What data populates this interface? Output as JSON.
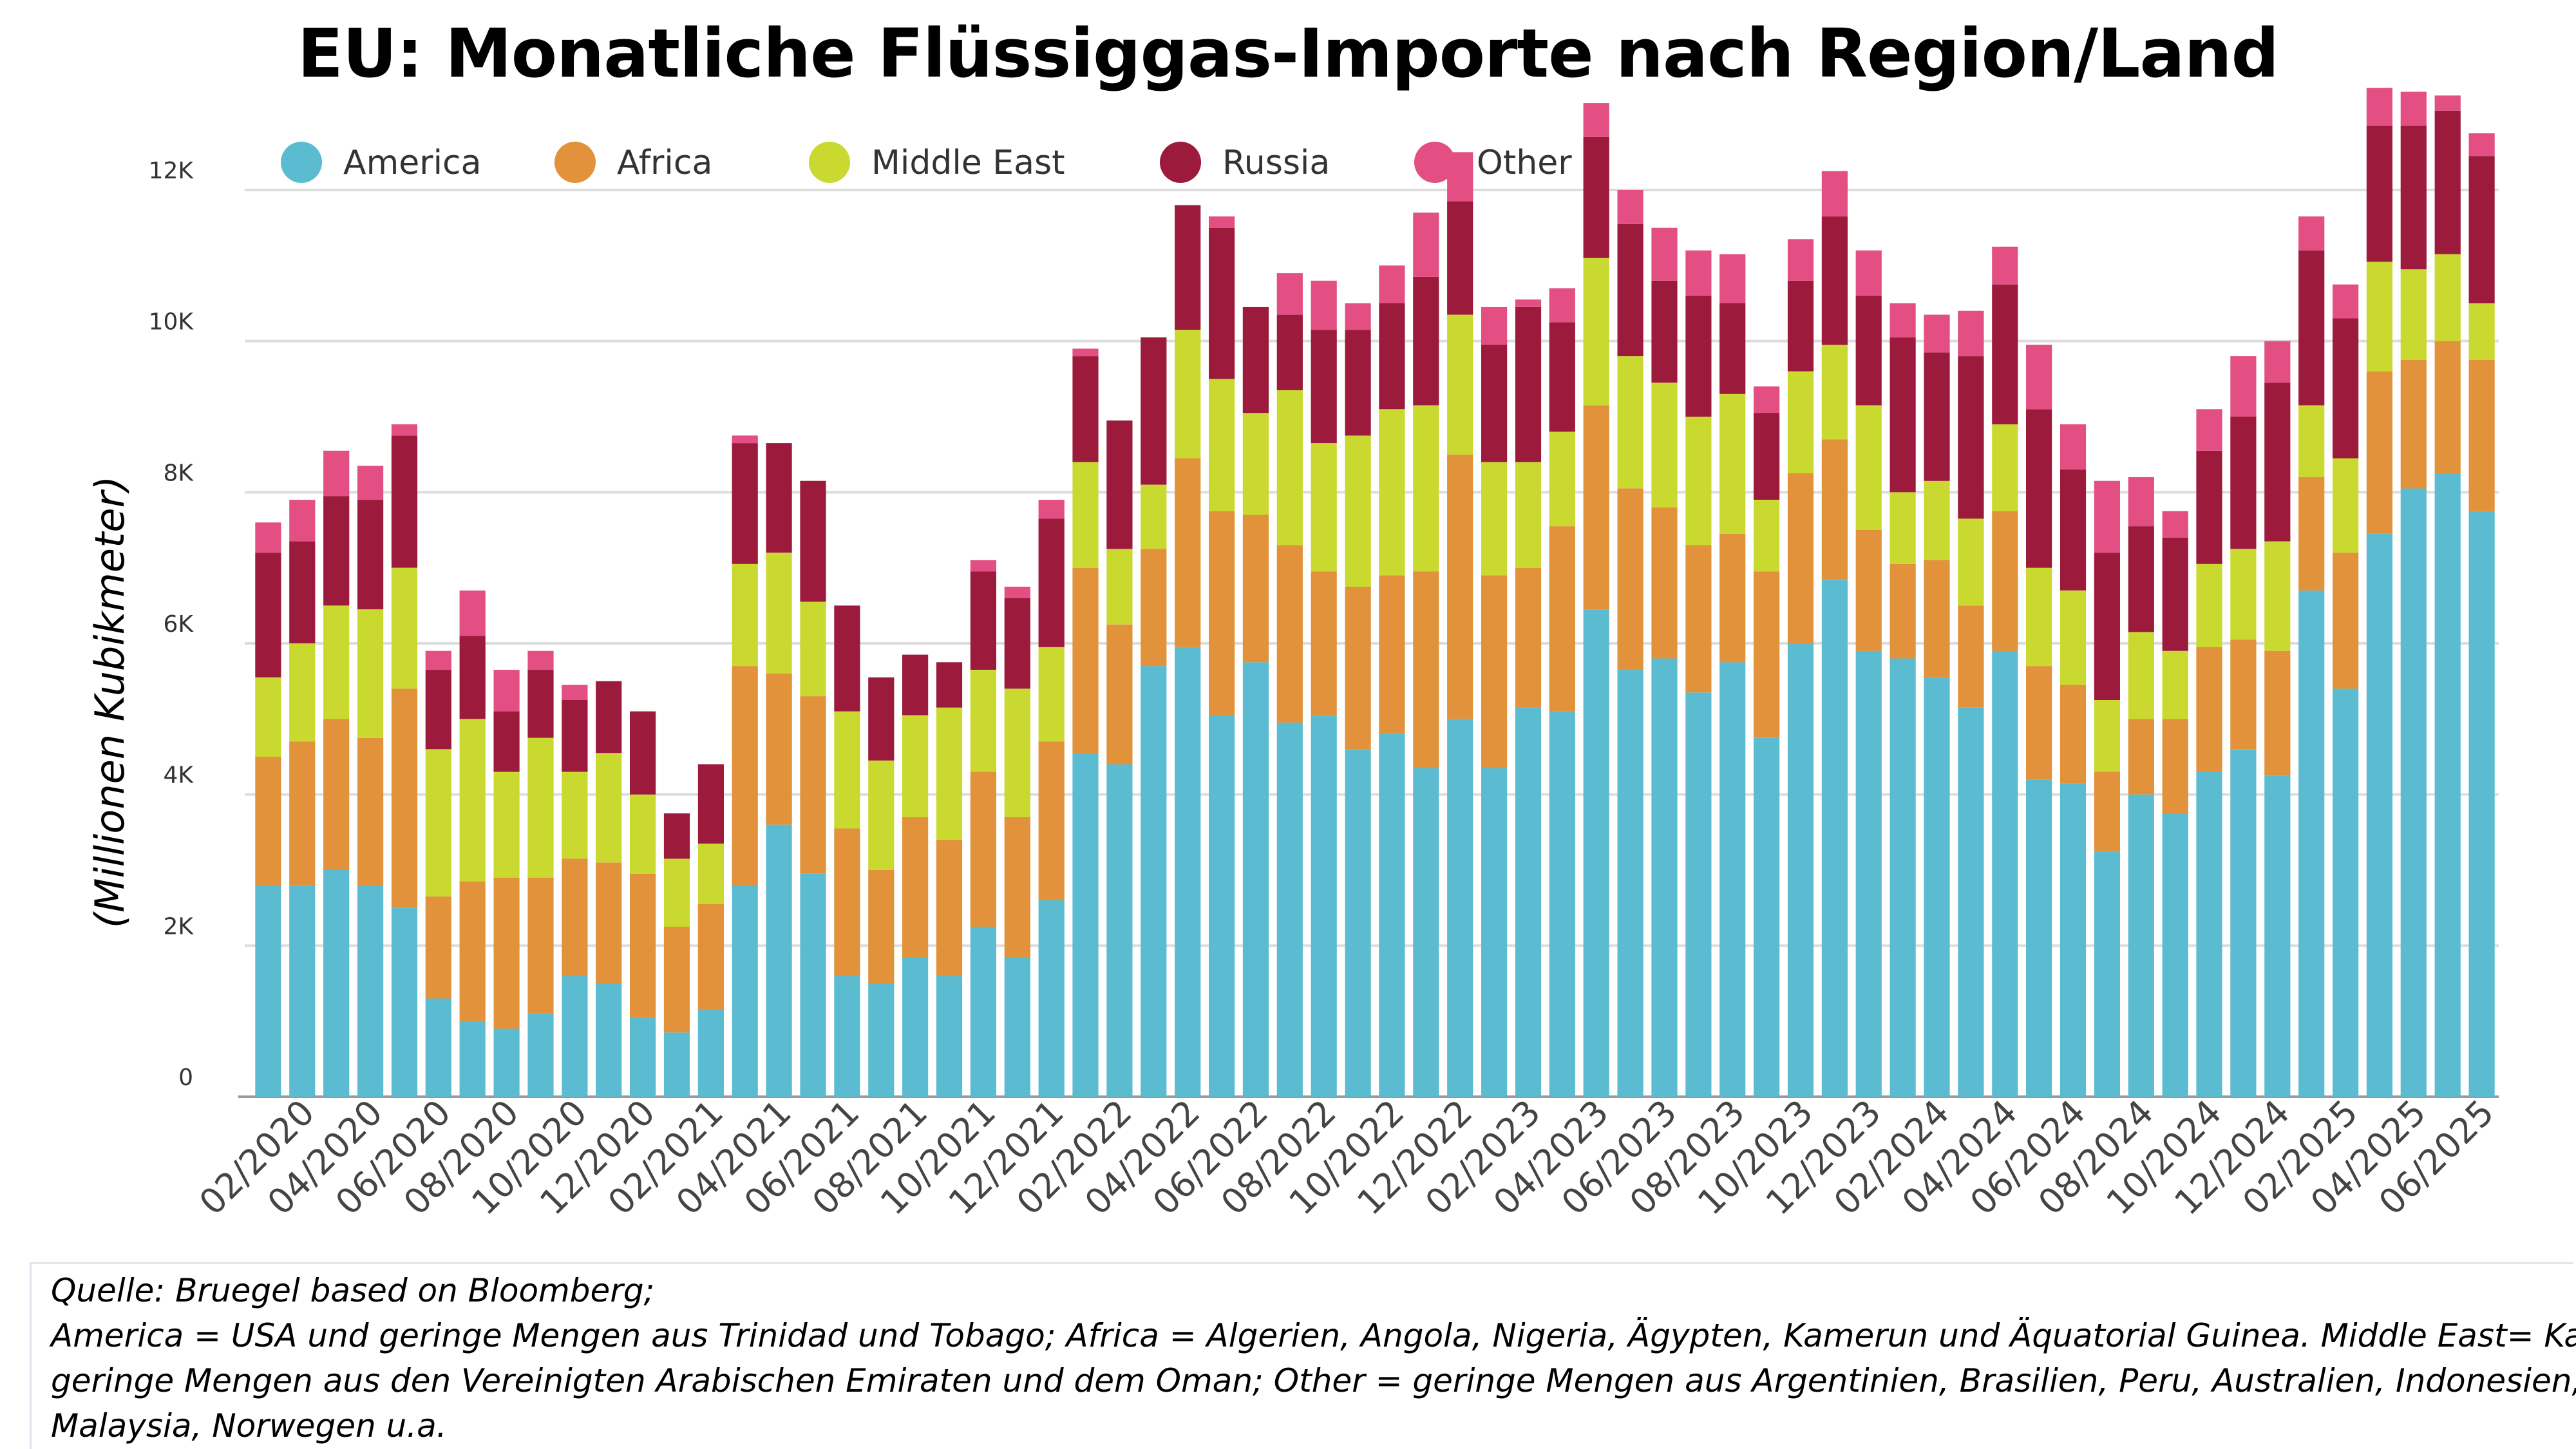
{
  "chart_data": {
    "type": "bar",
    "stacked": true,
    "title": "EU: Monatliche Flüssiggas-Importe nach Region/Land",
    "ylabel": "(Millionen Kubikmeter)",
    "xlabel": "",
    "ylim": [
      0,
      13200
    ],
    "yticks": [
      0,
      2000,
      4000,
      6000,
      8000,
      10000,
      12000
    ],
    "ytick_labels": [
      "0",
      "2K",
      "4K",
      "6K",
      "8K",
      "10K",
      "12K"
    ],
    "grid": true,
    "legend_position": "top-left",
    "categories": [
      "01/2020",
      "02/2020",
      "03/2020",
      "04/2020",
      "05/2020",
      "06/2020",
      "07/2020",
      "08/2020",
      "09/2020",
      "10/2020",
      "11/2020",
      "12/2020",
      "01/2021",
      "02/2021",
      "03/2021",
      "04/2021",
      "05/2021",
      "06/2021",
      "07/2021",
      "08/2021",
      "09/2021",
      "10/2021",
      "11/2021",
      "12/2021",
      "01/2022",
      "02/2022",
      "03/2022",
      "04/2022",
      "05/2022",
      "06/2022",
      "07/2022",
      "08/2022",
      "09/2022",
      "10/2022",
      "11/2022",
      "12/2022",
      "01/2023",
      "02/2023",
      "03/2023",
      "04/2023",
      "05/2023",
      "06/2023",
      "07/2023",
      "08/2023",
      "09/2023",
      "10/2023",
      "11/2023",
      "12/2023",
      "01/2024",
      "02/2024",
      "03/2024",
      "04/2024",
      "05/2024",
      "06/2024",
      "07/2024",
      "08/2024",
      "09/2024",
      "10/2024",
      "11/2024",
      "12/2024",
      "01/2025",
      "02/2025",
      "03/2025",
      "04/2025",
      "05/2025",
      "06/2025"
    ],
    "tick_labels": [
      "02/2020",
      "04/2020",
      "06/2020",
      "08/2020",
      "10/2020",
      "12/2020",
      "02/2021",
      "04/2021",
      "06/2021",
      "08/2021",
      "10/2021",
      "12/2021",
      "02/2022",
      "04/2022",
      "06/2022",
      "08/2022",
      "10/2022",
      "12/2022",
      "02/2023",
      "04/2023",
      "06/2023",
      "08/2023",
      "10/2023",
      "12/2023",
      "02/2024",
      "04/2024",
      "06/2024",
      "08/2024",
      "10/2024",
      "12/2024",
      "02/2025",
      "04/2025",
      "06/2025"
    ],
    "series": [
      {
        "name": "America",
        "color": "#5bbcd1",
        "values": [
          2800,
          2800,
          3000,
          2800,
          2500,
          1300,
          1000,
          900,
          1100,
          1600,
          1500,
          1050,
          850,
          1150,
          2800,
          3600,
          2950,
          1600,
          1500,
          1850,
          1600,
          2250,
          1850,
          2600,
          4550,
          4400,
          5700,
          5950,
          5050,
          5750,
          4950,
          5050,
          4600,
          4800,
          4350,
          5000,
          4350,
          5150,
          5100,
          6450,
          5650,
          5800,
          5350,
          5750,
          4750,
          6000,
          6850,
          5900,
          5800,
          5550,
          5150,
          5900,
          4200,
          4150,
          3250,
          4000,
          3750,
          4300,
          4600,
          4250,
          6700,
          5400,
          7450,
          8050,
          8250,
          7750
        ]
      },
      {
        "name": "Africa",
        "color": "#e1923a",
        "values": [
          1700,
          1900,
          2000,
          1950,
          2900,
          1350,
          1850,
          2000,
          1800,
          1550,
          1600,
          1900,
          1400,
          1400,
          2900,
          2000,
          2350,
          1950,
          1500,
          1850,
          1800,
          2050,
          1850,
          2100,
          2450,
          1850,
          1550,
          2500,
          2700,
          1950,
          2350,
          1900,
          2150,
          2100,
          2600,
          3500,
          2550,
          1850,
          2450,
          2700,
          2400,
          2000,
          1950,
          1700,
          2200,
          2250,
          1850,
          1600,
          1250,
          1550,
          1350,
          1850,
          1500,
          1300,
          1050,
          1000,
          1250,
          1650,
          1450,
          1650,
          1500,
          1800,
          2150,
          1700,
          1750,
          2000
        ]
      },
      {
        "name": "Middle East",
        "color": "#c9d92f",
        "values": [
          1050,
          1300,
          1500,
          1700,
          1600,
          1950,
          2150,
          1400,
          1850,
          1150,
          1450,
          1050,
          900,
          800,
          1350,
          1600,
          1250,
          1550,
          1450,
          1350,
          1750,
          1350,
          1700,
          1250,
          1400,
          1000,
          850,
          1700,
          1750,
          1350,
          2050,
          1700,
          2000,
          2200,
          2200,
          1850,
          1500,
          1400,
          1250,
          1950,
          1750,
          1650,
          1700,
          1850,
          950,
          1350,
          1250,
          1650,
          950,
          1050,
          1150,
          1150,
          1300,
          1250,
          950,
          1150,
          900,
          1100,
          1200,
          1450,
          950,
          1250,
          1450,
          1200,
          1150,
          750
        ]
      },
      {
        "name": "Russia",
        "color": "#9c1a3b",
        "values": [
          1650,
          1350,
          1450,
          1450,
          1750,
          1050,
          1100,
          800,
          900,
          950,
          950,
          1100,
          600,
          1050,
          1600,
          1450,
          1600,
          1400,
          1100,
          800,
          600,
          1300,
          1200,
          1700,
          1400,
          1700,
          1950,
          1650,
          2000,
          1400,
          1000,
          1500,
          1400,
          1400,
          1700,
          1500,
          1550,
          2050,
          1450,
          1600,
          1750,
          1350,
          1600,
          1200,
          1150,
          1200,
          1700,
          1450,
          2050,
          1700,
          2150,
          1850,
          2100,
          1600,
          1950,
          1400,
          1500,
          1500,
          1750,
          2100,
          2050,
          1850,
          1800,
          1900,
          1900,
          1950
        ]
      },
      {
        "name": "Other",
        "color": "#e34f82",
        "values": [
          400,
          550,
          600,
          450,
          150,
          250,
          600,
          550,
          250,
          200,
          0,
          0,
          0,
          0,
          100,
          0,
          0,
          0,
          0,
          0,
          0,
          150,
          150,
          250,
          100,
          0,
          0,
          0,
          150,
          0,
          550,
          650,
          350,
          500,
          850,
          650,
          500,
          100,
          450,
          450,
          450,
          700,
          600,
          650,
          350,
          550,
          600,
          600,
          450,
          500,
          600,
          500,
          850,
          600,
          950,
          650,
          350,
          550,
          800,
          550,
          450,
          450,
          500,
          450,
          200,
          300
        ]
      }
    ]
  },
  "notes": {
    "line1": "Quelle: Bruegel based on Bloomberg;",
    "line2": "America = USA und geringe Mengen aus Trinidad und Tobago; Africa =  Algerien, Angola, Nigeria, Ägypten, Kamerun und Äquatorial Guinea. Middle East= Katar und",
    "line3": "geringe Mengen aus den Vereinigten Arabischen Emiraten und dem Oman; Other = geringe Mengen aus Argentinien, Brasilien, Peru, Australien, Indonesien,",
    "line4": "Malaysia, Norwegen u.a."
  }
}
